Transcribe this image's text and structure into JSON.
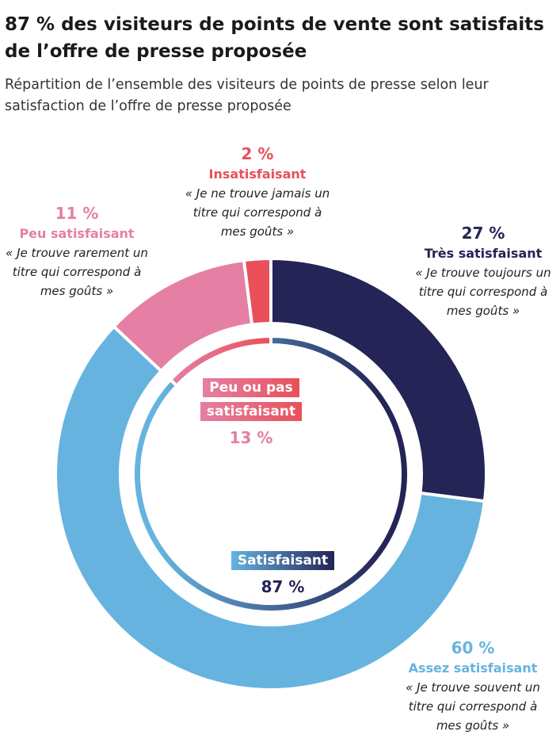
{
  "title": "87 % des visiteurs de points de vente sont satisfaits de l’offre de presse proposée",
  "subtitle": "Répartition de l’ensemble des visiteurs de points de presse selon leur satisfaction de l’offre de presse proposée",
  "chart_data": {
    "type": "donut",
    "categories": [
      "Très satisfaisant",
      "Assez satisfaisant",
      "Peu satisfaisant",
      "Insatisfaisant"
    ],
    "values": [
      27,
      60,
      11,
      2
    ],
    "value_labels": [
      "27 %",
      "60 %",
      "11 %",
      "2 %"
    ],
    "quotes": [
      "« Je trouve toujours un titre qui correspond à mes goûts »",
      "« Je trouve souvent un titre qui correspond à mes goûts »",
      "« Je trouve rarement un titre qui correspond à mes goûts »",
      "« Je ne trouve jamais un titre qui correspond à mes goûts »"
    ],
    "colors": [
      "#252456",
      "#66b3e0",
      "#e57fa3",
      "#e9505a"
    ],
    "groups": {
      "categories": [
        "Satisfaisant",
        "Peu ou pas satisfaisant"
      ],
      "values": [
        87,
        13
      ],
      "value_labels": [
        "87 %",
        "13 %"
      ],
      "colors": [
        [
          "#66b3e0",
          "#252456"
        ],
        [
          "#e57fa3",
          "#e9505a"
        ]
      ]
    }
  }
}
